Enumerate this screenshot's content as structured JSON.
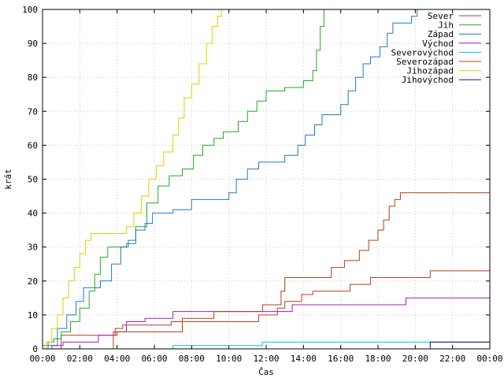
{
  "chart_data": {
    "type": "line",
    "title": "",
    "xlabel": "Čas",
    "ylabel": "krát",
    "x_unit": "hours",
    "xlim": [
      0,
      24
    ],
    "ylim": [
      0,
      100
    ],
    "x_ticks": [
      0,
      2,
      4,
      6,
      8,
      10,
      12,
      14,
      16,
      18,
      20,
      22,
      24
    ],
    "x_tick_labels": [
      "00:00",
      "02:00",
      "04:00",
      "06:00",
      "08:00",
      "10:00",
      "12:00",
      "14:00",
      "16:00",
      "18:00",
      "20:00",
      "22:00",
      "00:00"
    ],
    "y_ticks": [
      0,
      10,
      20,
      30,
      40,
      50,
      60,
      70,
      80,
      90,
      100
    ],
    "y_tick_labels": [
      "0",
      "10",
      "20",
      "30",
      "40",
      "50",
      "60",
      "70",
      "80",
      "90",
      "100"
    ],
    "legend_position": "top-right",
    "step": true,
    "series": [
      {
        "name": "Sever",
        "color": "#c0392b",
        "points": [
          [
            1.0,
            0
          ],
          [
            1.0,
            4
          ],
          [
            3.9,
            4
          ],
          [
            3.9,
            6
          ],
          [
            4.3,
            6
          ],
          [
            4.3,
            7
          ],
          [
            6.9,
            7
          ],
          [
            6.9,
            8
          ],
          [
            11.6,
            8
          ],
          [
            11.6,
            10
          ],
          [
            12.6,
            10
          ],
          [
            12.6,
            12
          ],
          [
            13.0,
            12
          ],
          [
            13.0,
            14
          ],
          [
            13.9,
            14
          ],
          [
            13.9,
            16
          ],
          [
            14.5,
            16
          ],
          [
            14.5,
            17
          ],
          [
            16.5,
            17
          ],
          [
            16.5,
            19
          ],
          [
            17.6,
            19
          ],
          [
            17.6,
            21
          ],
          [
            20.8,
            21
          ],
          [
            20.8,
            23
          ],
          [
            24,
            23
          ]
        ]
      },
      {
        "name": "Jih",
        "color": "#22aa22",
        "points": [
          [
            0.3,
            0
          ],
          [
            0.3,
            2
          ],
          [
            0.6,
            2
          ],
          [
            0.6,
            3
          ],
          [
            1.0,
            3
          ],
          [
            1.0,
            5
          ],
          [
            1.5,
            5
          ],
          [
            1.5,
            8
          ],
          [
            2.0,
            8
          ],
          [
            2.0,
            12
          ],
          [
            2.5,
            12
          ],
          [
            2.5,
            17
          ],
          [
            2.8,
            17
          ],
          [
            2.8,
            22
          ],
          [
            3.1,
            22
          ],
          [
            3.1,
            27
          ],
          [
            3.5,
            27
          ],
          [
            3.5,
            30
          ],
          [
            4.5,
            30
          ],
          [
            4.5,
            31
          ],
          [
            5.0,
            31
          ],
          [
            5.0,
            36
          ],
          [
            5.6,
            36
          ],
          [
            5.6,
            43
          ],
          [
            6.2,
            43
          ],
          [
            6.2,
            48
          ],
          [
            6.8,
            48
          ],
          [
            6.8,
            51
          ],
          [
            7.5,
            51
          ],
          [
            7.5,
            53
          ],
          [
            8.1,
            53
          ],
          [
            8.1,
            57
          ],
          [
            8.6,
            57
          ],
          [
            8.6,
            60
          ],
          [
            9.2,
            60
          ],
          [
            9.2,
            62
          ],
          [
            9.7,
            62
          ],
          [
            9.7,
            64
          ],
          [
            10.5,
            64
          ],
          [
            10.5,
            67
          ],
          [
            11.0,
            67
          ],
          [
            11.0,
            70
          ],
          [
            11.5,
            70
          ],
          [
            11.5,
            73
          ],
          [
            12.0,
            73
          ],
          [
            12.0,
            76
          ],
          [
            13.0,
            76
          ],
          [
            13.0,
            77
          ],
          [
            14.0,
            77
          ],
          [
            14.0,
            79
          ],
          [
            14.5,
            79
          ],
          [
            14.5,
            82
          ],
          [
            14.7,
            82
          ],
          [
            14.7,
            88
          ],
          [
            14.9,
            88
          ],
          [
            14.9,
            95
          ],
          [
            15.1,
            95
          ],
          [
            15.1,
            100
          ]
        ]
      },
      {
        "name": "Západ",
        "color": "#1f78c8",
        "points": [
          [
            0.0,
            0
          ],
          [
            0.0,
            1
          ],
          [
            0.8,
            1
          ],
          [
            0.8,
            6
          ],
          [
            1.3,
            6
          ],
          [
            1.3,
            10
          ],
          [
            1.8,
            10
          ],
          [
            1.8,
            14
          ],
          [
            2.2,
            14
          ],
          [
            2.2,
            18
          ],
          [
            3.1,
            18
          ],
          [
            3.1,
            20
          ],
          [
            3.7,
            20
          ],
          [
            3.7,
            25
          ],
          [
            4.2,
            25
          ],
          [
            4.2,
            30
          ],
          [
            4.6,
            30
          ],
          [
            4.6,
            32
          ],
          [
            5.0,
            32
          ],
          [
            5.0,
            35
          ],
          [
            5.5,
            35
          ],
          [
            5.5,
            37
          ],
          [
            5.9,
            37
          ],
          [
            5.9,
            40
          ],
          [
            7.0,
            40
          ],
          [
            7.0,
            41
          ],
          [
            8.0,
            41
          ],
          [
            8.0,
            44
          ],
          [
            10.0,
            44
          ],
          [
            10.0,
            46
          ],
          [
            10.4,
            46
          ],
          [
            10.4,
            50
          ],
          [
            11.0,
            50
          ],
          [
            11.0,
            53
          ],
          [
            11.6,
            53
          ],
          [
            11.6,
            55
          ],
          [
            13.0,
            55
          ],
          [
            13.0,
            57
          ],
          [
            13.7,
            57
          ],
          [
            13.7,
            60
          ],
          [
            14.1,
            60
          ],
          [
            14.1,
            63
          ],
          [
            14.6,
            63
          ],
          [
            14.6,
            66
          ],
          [
            15.0,
            66
          ],
          [
            15.0,
            69
          ],
          [
            16.0,
            69
          ],
          [
            16.0,
            72
          ],
          [
            16.4,
            72
          ],
          [
            16.4,
            76
          ],
          [
            16.8,
            76
          ],
          [
            16.8,
            80
          ],
          [
            17.2,
            80
          ],
          [
            17.2,
            84
          ],
          [
            17.6,
            84
          ],
          [
            17.6,
            86
          ],
          [
            18.1,
            86
          ],
          [
            18.1,
            89
          ],
          [
            18.5,
            89
          ],
          [
            18.5,
            93
          ],
          [
            18.8,
            93
          ],
          [
            18.8,
            96
          ],
          [
            19.8,
            96
          ],
          [
            19.8,
            98
          ],
          [
            20.1,
            98
          ],
          [
            20.1,
            100
          ]
        ]
      },
      {
        "name": "Východ",
        "color": "#a020c0",
        "points": [
          [
            0.5,
            0
          ],
          [
            0.5,
            1
          ],
          [
            1.1,
            1
          ],
          [
            1.1,
            2
          ],
          [
            3.0,
            2
          ],
          [
            3.0,
            4
          ],
          [
            4.0,
            4
          ],
          [
            4.0,
            5
          ],
          [
            4.5,
            5
          ],
          [
            4.5,
            8
          ],
          [
            5.5,
            8
          ],
          [
            5.5,
            9
          ],
          [
            7.0,
            9
          ],
          [
            7.0,
            11
          ],
          [
            13.4,
            11
          ],
          [
            13.4,
            13
          ],
          [
            19.5,
            13
          ],
          [
            19.5,
            15
          ],
          [
            24,
            15
          ]
        ]
      },
      {
        "name": "Severovýchod",
        "color": "#00c8d0",
        "points": [
          [
            7.0,
            0
          ],
          [
            7.0,
            1
          ],
          [
            11.8,
            1
          ],
          [
            11.8,
            2
          ],
          [
            24,
            2
          ]
        ]
      },
      {
        "name": "Severozápad",
        "color": "#b04010",
        "points": [
          [
            3.8,
            0
          ],
          [
            3.8,
            5
          ],
          [
            7.5,
            5
          ],
          [
            7.5,
            9
          ],
          [
            9.2,
            9
          ],
          [
            9.2,
            11
          ],
          [
            11.8,
            11
          ],
          [
            11.8,
            13
          ],
          [
            12.8,
            13
          ],
          [
            12.8,
            17
          ],
          [
            13.0,
            17
          ],
          [
            13.0,
            21
          ],
          [
            15.5,
            21
          ],
          [
            15.5,
            24
          ],
          [
            16.2,
            24
          ],
          [
            16.2,
            26
          ],
          [
            17.0,
            26
          ],
          [
            17.0,
            29
          ],
          [
            17.5,
            29
          ],
          [
            17.5,
            32
          ],
          [
            18.0,
            32
          ],
          [
            18.0,
            35
          ],
          [
            18.3,
            35
          ],
          [
            18.3,
            38
          ],
          [
            18.6,
            38
          ],
          [
            18.6,
            42
          ],
          [
            18.9,
            42
          ],
          [
            18.9,
            44
          ],
          [
            19.2,
            44
          ],
          [
            19.2,
            46
          ],
          [
            24,
            46
          ]
        ]
      },
      {
        "name": "Jihozápad",
        "color": "#e0d000",
        "points": [
          [
            0.2,
            0
          ],
          [
            0.2,
            2
          ],
          [
            0.5,
            2
          ],
          [
            0.5,
            6
          ],
          [
            0.8,
            6
          ],
          [
            0.8,
            10
          ],
          [
            1.1,
            10
          ],
          [
            1.1,
            15
          ],
          [
            1.4,
            15
          ],
          [
            1.4,
            20
          ],
          [
            1.7,
            20
          ],
          [
            1.7,
            24
          ],
          [
            2.0,
            24
          ],
          [
            2.0,
            28
          ],
          [
            2.3,
            28
          ],
          [
            2.3,
            32
          ],
          [
            2.6,
            32
          ],
          [
            2.6,
            34
          ],
          [
            4.5,
            34
          ],
          [
            4.5,
            36
          ],
          [
            4.9,
            36
          ],
          [
            4.9,
            40
          ],
          [
            5.3,
            40
          ],
          [
            5.3,
            45
          ],
          [
            5.7,
            45
          ],
          [
            5.7,
            50
          ],
          [
            6.1,
            50
          ],
          [
            6.1,
            54
          ],
          [
            6.5,
            54
          ],
          [
            6.5,
            58
          ],
          [
            7.0,
            58
          ],
          [
            7.0,
            63
          ],
          [
            7.3,
            63
          ],
          [
            7.3,
            68
          ],
          [
            7.6,
            68
          ],
          [
            7.6,
            74
          ],
          [
            8.0,
            74
          ],
          [
            8.0,
            78
          ],
          [
            8.4,
            78
          ],
          [
            8.4,
            84
          ],
          [
            8.8,
            84
          ],
          [
            8.8,
            90
          ],
          [
            9.1,
            90
          ],
          [
            9.1,
            95
          ],
          [
            9.4,
            95
          ],
          [
            9.4,
            98
          ],
          [
            9.6,
            98
          ],
          [
            9.6,
            100
          ]
        ]
      },
      {
        "name": "Jihovýchod",
        "color": "#101080",
        "points": [
          [
            20.8,
            0
          ],
          [
            20.8,
            2
          ],
          [
            24,
            2
          ]
        ]
      }
    ]
  }
}
